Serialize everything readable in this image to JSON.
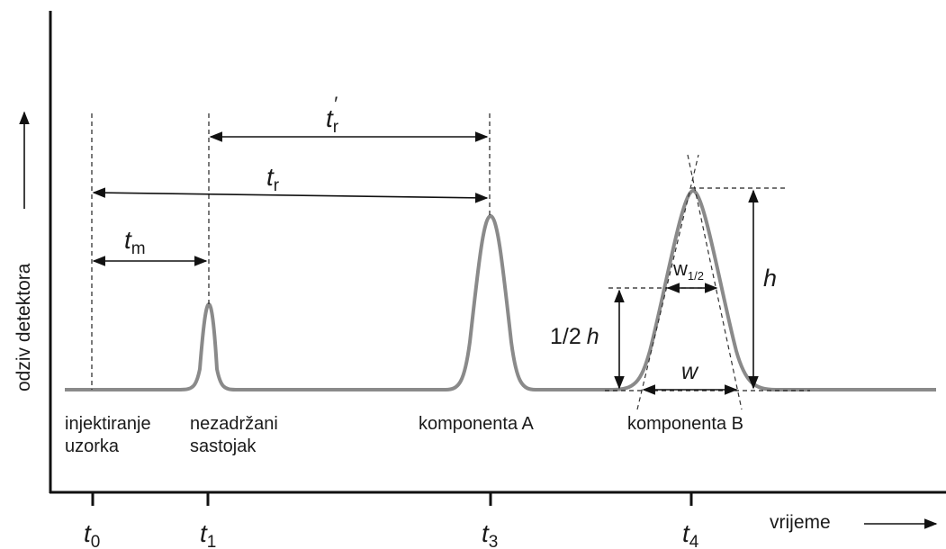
{
  "axes": {
    "y_label": "odziv detektora",
    "x_label": "vrijeme"
  },
  "ticks": [
    {
      "sym": "t",
      "sub": "0"
    },
    {
      "sym": "t",
      "sub": "1"
    },
    {
      "sym": "t",
      "sub": "3"
    },
    {
      "sym": "t",
      "sub": "4"
    }
  ],
  "events": {
    "injection": [
      "injektiranje",
      "uzorka"
    ],
    "unretained": [
      "nezadržani",
      "sastojak"
    ],
    "component_a": "komponenta A",
    "component_b": "komponenta B"
  },
  "intervals": {
    "tm": {
      "sym": "t",
      "sub": "m"
    },
    "tr": {
      "sym": "t",
      "sub": "r"
    },
    "tr_prime": {
      "sym": "t",
      "sub": "r",
      "prime": "′"
    }
  },
  "measures": {
    "half_width": {
      "sym": "w",
      "sub": "1/2"
    },
    "width": "w",
    "height": "h",
    "half_height_num": "1/2",
    "half_height_sym": "h"
  }
}
